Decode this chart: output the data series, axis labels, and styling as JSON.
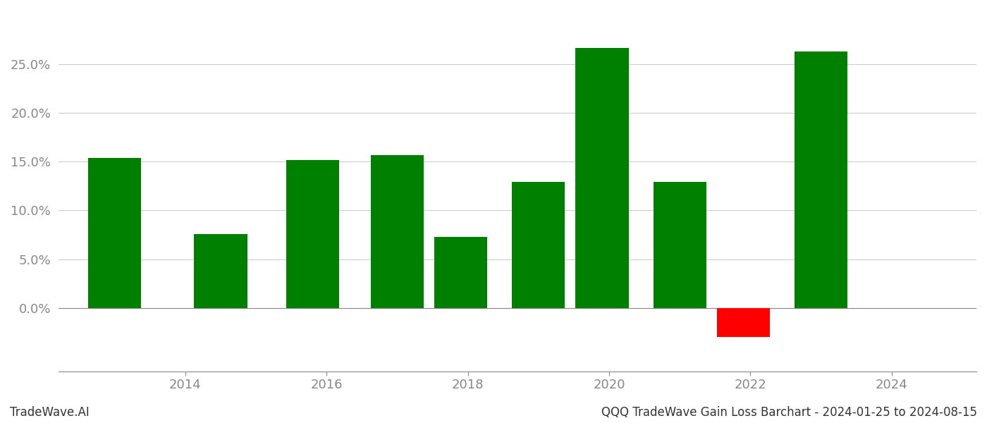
{
  "years": [
    2013.0,
    2014.5,
    2015.8,
    2017.0,
    2017.9,
    2019.0,
    2019.9,
    2021.0,
    2021.9,
    2023.0
  ],
  "values": [
    0.154,
    0.076,
    0.152,
    0.157,
    0.073,
    0.129,
    0.267,
    0.129,
    -0.03,
    0.263
  ],
  "bar_colors": [
    "#008000",
    "#008000",
    "#008000",
    "#008000",
    "#008000",
    "#008000",
    "#008000",
    "#008000",
    "#ff0000",
    "#008000"
  ],
  "footer_left": "TradeWave.AI",
  "footer_right": "QQQ TradeWave Gain Loss Barchart - 2024-01-25 to 2024-08-15",
  "ylim": [
    -0.065,
    0.305
  ],
  "yticks": [
    0.0,
    0.05,
    0.1,
    0.15,
    0.2,
    0.25
  ],
  "xticks": [
    2014,
    2016,
    2018,
    2020,
    2022,
    2024
  ],
  "xlim": [
    2012.2,
    2025.2
  ],
  "background_color": "#ffffff",
  "grid_color": "#cccccc",
  "tick_color": "#888888",
  "bar_width": 0.75
}
